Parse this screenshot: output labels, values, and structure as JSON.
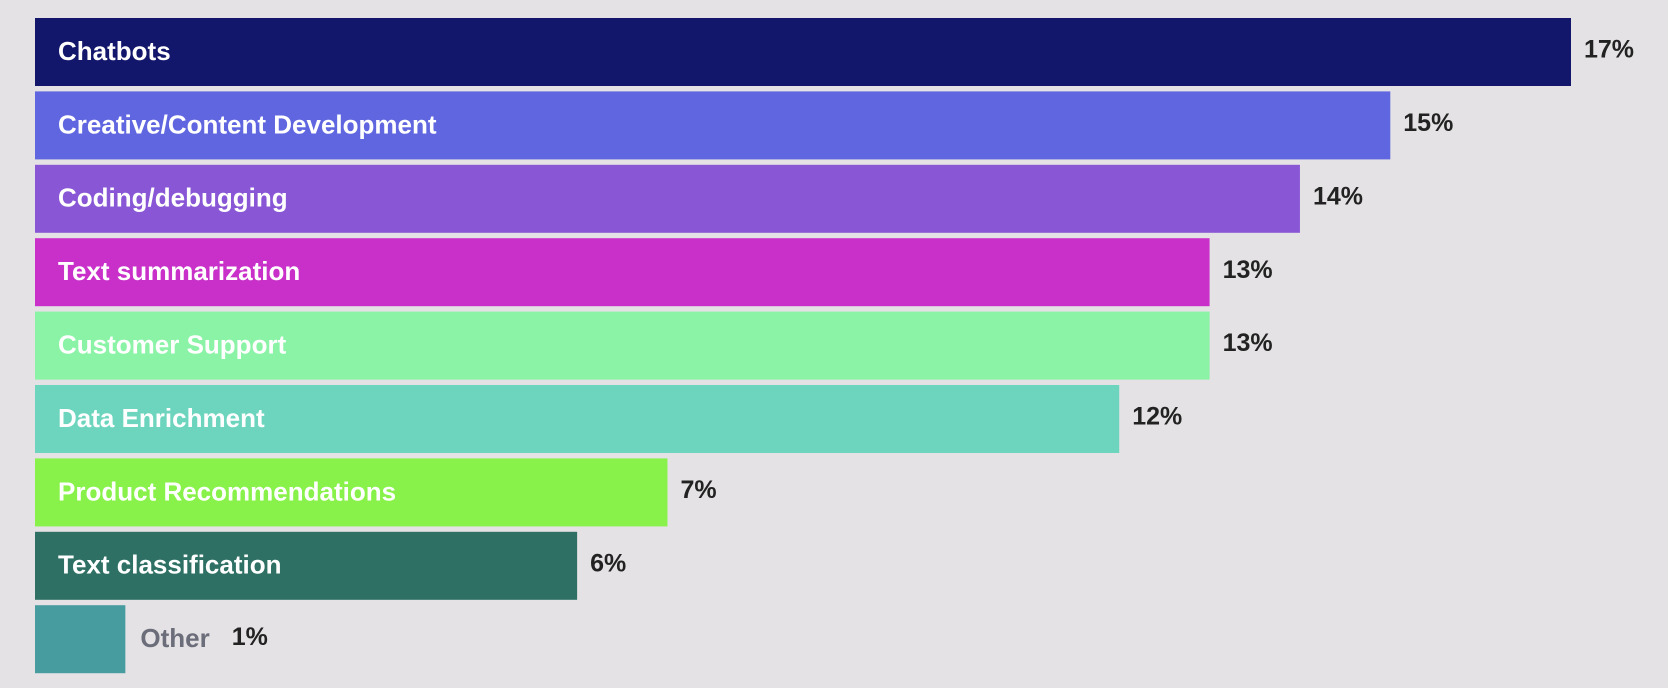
{
  "chart_data": {
    "type": "bar",
    "orientation": "horizontal",
    "categories": [
      "Chatbots",
      "Creative/Content Development",
      "Coding/debugging",
      "Text summarization",
      "Customer Support",
      "Data Enrichment",
      "Product Recommendations",
      "Text classification",
      "Other"
    ],
    "values": [
      17,
      15,
      14,
      13,
      13,
      12,
      7,
      6,
      1
    ],
    "value_labels": [
      "17%",
      "15%",
      "14%",
      "13%",
      "13%",
      "12%",
      "7%",
      "6%",
      "1%"
    ],
    "colors": [
      "#12176b",
      "#6066e0",
      "#8957d6",
      "#c930c9",
      "#8af3a6",
      "#6dd5be",
      "#88f24a",
      "#2f7064",
      "#479ca0"
    ]
  }
}
